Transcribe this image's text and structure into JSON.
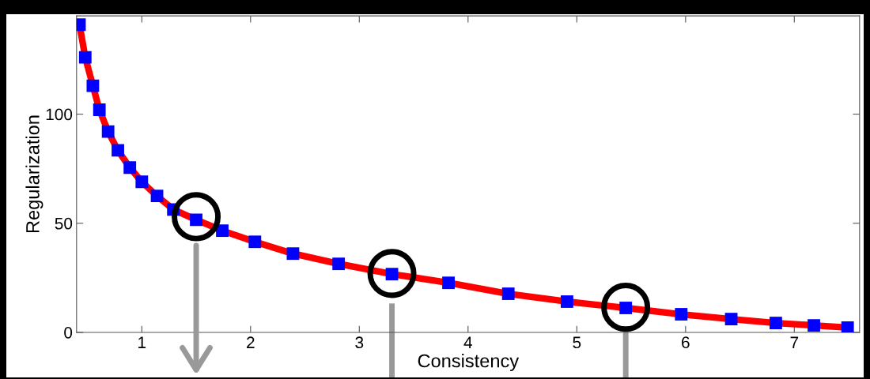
{
  "chart_data": {
    "type": "line",
    "xlabel": "Consistency",
    "ylabel": "Regularization",
    "xlim": [
      0.4,
      7.6
    ],
    "ylim": [
      0,
      145
    ],
    "xticks": [
      1,
      2,
      3,
      4,
      5,
      6,
      7
    ],
    "yticks": [
      0,
      50,
      100
    ],
    "grid": false,
    "legend": false,
    "marker": "square",
    "line_style": "solid",
    "series": [
      {
        "color": "#ff0000",
        "colors": [
          "#0000ff",
          "#0000ff",
          "#0000ff",
          "#0000ff",
          "#0000ff",
          "#0000ff",
          "#0000ff",
          "#0000ff",
          "#0000ff",
          "#0000ff",
          "#0000ff",
          "#0000ff",
          "#0000ff",
          "#0000ff",
          "#0000ff",
          "#0000ff",
          "#0000ff",
          "#0000ff",
          "#0000ff",
          "#0000ff",
          "#0000ff",
          "#0000ff",
          "#0000ff",
          "#0000ff",
          "#0000ff"
        ],
        "x": [
          0.427,
          0.48,
          0.55,
          0.61,
          0.69,
          0.78,
          0.89,
          1.0,
          1.14,
          1.29,
          1.5,
          1.74,
          2.04,
          2.39,
          2.81,
          3.3,
          3.82,
          4.37,
          4.91,
          5.45,
          5.96,
          6.42,
          6.83,
          7.18,
          7.49
        ],
        "values": [
          141,
          126,
          113,
          102,
          92,
          83.4,
          75.5,
          69,
          62.5,
          56.3,
          51.6,
          46.6,
          41.5,
          36.1,
          31.4,
          26.7,
          22.7,
          17.7,
          14.1,
          11.2,
          8.3,
          6.1,
          4.3,
          3.2,
          2.2
        ]
      }
    ]
  }
}
